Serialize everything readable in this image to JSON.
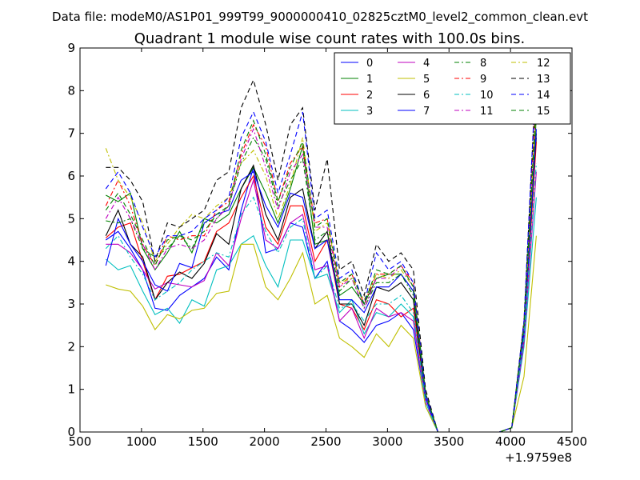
{
  "header": {
    "data_file": "Data file: modeM0/AS1P01_999T99_9000000410_02825cztM0_level2_common_clean.evt"
  },
  "chart_data": {
    "type": "line",
    "title": "Quadrant 1 module wise count rates with 100.0s bins.",
    "xlabel": "",
    "ylabel": "",
    "x_offset_label": "+1.9759e8",
    "xlim": [
      500,
      4500
    ],
    "ylim": [
      0,
      9
    ],
    "xticks": [
      500,
      1000,
      1500,
      2000,
      2500,
      3000,
      3500,
      4000,
      4500
    ],
    "yticks": [
      0,
      1,
      2,
      3,
      4,
      5,
      6,
      7,
      8,
      9
    ],
    "grid": false,
    "legend_position": "top-right",
    "x": [
      710,
      810,
      910,
      1010,
      1110,
      1210,
      1310,
      1410,
      1510,
      1610,
      1710,
      1810,
      1910,
      2010,
      2110,
      2210,
      2310,
      2410,
      2510,
      2610,
      2710,
      2810,
      2910,
      3010,
      3110,
      3210,
      3310,
      3410,
      3510,
      3610,
      3710,
      3810,
      3910,
      4010,
      4110,
      4210
    ],
    "series": [
      {
        "name": "0",
        "color": "#0000ff",
        "dash": "solid",
        "values": [
          4.5,
          4.7,
          4.3,
          3.8,
          2.9,
          2.85,
          3.2,
          3.4,
          3.6,
          4.1,
          3.8,
          5.2,
          6.2,
          4.2,
          4.3,
          4.9,
          4.8,
          3.6,
          4.0,
          2.6,
          2.4,
          2.1,
          2.5,
          2.6,
          2.8,
          2.4,
          0.7,
          0.0,
          0.0,
          0.0,
          0.0,
          0.0,
          0.0,
          0.1,
          2.3,
          6.9
        ]
      },
      {
        "name": "1",
        "color": "#008000",
        "dash": "solid",
        "values": [
          5.55,
          5.4,
          5.6,
          4.3,
          3.8,
          4.2,
          4.7,
          4.2,
          5.0,
          4.9,
          5.1,
          5.7,
          6.2,
          5.6,
          4.9,
          5.7,
          6.7,
          4.4,
          4.5,
          3.2,
          3.4,
          3.0,
          3.6,
          3.7,
          3.7,
          3.3,
          0.9,
          0.0,
          0.0,
          0.0,
          0.0,
          0.0,
          0.0,
          0.1,
          2.4,
          7.4
        ]
      },
      {
        "name": "2",
        "color": "#ff0000",
        "dash": "solid",
        "values": [
          4.55,
          4.8,
          4.9,
          4.0,
          3.1,
          3.65,
          3.7,
          3.85,
          4.0,
          4.7,
          4.9,
          5.5,
          6.0,
          4.8,
          4.4,
          5.3,
          5.3,
          4.0,
          4.5,
          3.0,
          2.9,
          2.4,
          3.1,
          3.0,
          2.7,
          2.9,
          0.8,
          0.0,
          0.0,
          0.0,
          0.0,
          0.0,
          0.0,
          0.1,
          2.2,
          6.8
        ]
      },
      {
        "name": "3",
        "color": "#00bfbf",
        "dash": "solid",
        "values": [
          4.05,
          3.8,
          3.9,
          3.3,
          2.75,
          2.9,
          2.55,
          3.1,
          2.95,
          3.8,
          3.9,
          4.4,
          4.6,
          3.9,
          3.4,
          4.5,
          4.5,
          3.6,
          3.7,
          2.8,
          3.1,
          2.3,
          2.8,
          2.7,
          3.0,
          2.7,
          0.6,
          0.0,
          0.0,
          0.0,
          0.0,
          0.0,
          0.0,
          0.1,
          2.0,
          5.5
        ]
      },
      {
        "name": "4",
        "color": "#bf00bf",
        "dash": "solid",
        "values": [
          4.4,
          4.4,
          4.2,
          3.8,
          3.35,
          3.5,
          3.45,
          3.4,
          3.55,
          4.2,
          3.9,
          5.0,
          5.9,
          4.5,
          4.3,
          4.9,
          5.1,
          3.8,
          3.9,
          2.6,
          2.9,
          2.2,
          2.9,
          2.7,
          2.8,
          2.6,
          0.7,
          0.0,
          0.0,
          0.0,
          0.0,
          0.0,
          0.0,
          0.1,
          2.1,
          6.1
        ]
      },
      {
        "name": "5",
        "color": "#bfbf00",
        "dash": "solid",
        "values": [
          3.45,
          3.35,
          3.3,
          2.95,
          2.4,
          2.75,
          2.65,
          2.85,
          2.9,
          3.25,
          3.3,
          4.4,
          4.4,
          3.4,
          3.1,
          3.6,
          4.2,
          3.0,
          3.2,
          2.2,
          2.0,
          1.75,
          2.3,
          2.0,
          2.5,
          2.2,
          0.6,
          0.0,
          0.0,
          0.0,
          0.0,
          0.0,
          0.0,
          0.1,
          1.3,
          4.6
        ]
      },
      {
        "name": "6",
        "color": "#000000",
        "dash": "solid",
        "values": [
          4.6,
          5.2,
          4.4,
          4.1,
          3.1,
          3.5,
          3.75,
          3.6,
          3.95,
          4.65,
          4.4,
          5.7,
          6.25,
          5.1,
          4.5,
          5.5,
          5.7,
          4.3,
          4.7,
          3.0,
          3.0,
          2.5,
          3.4,
          3.3,
          3.5,
          3.1,
          0.8,
          0.0,
          0.0,
          0.0,
          0.0,
          0.0,
          0.0,
          0.1,
          2.4,
          7.0
        ]
      },
      {
        "name": "7",
        "color": "#0000ff",
        "dash": "solid",
        "values": [
          3.9,
          5.0,
          4.4,
          4.0,
          3.45,
          3.3,
          3.95,
          3.85,
          4.9,
          5.1,
          5.2,
          5.9,
          6.1,
          5.3,
          4.8,
          5.6,
          5.5,
          4.3,
          4.5,
          3.1,
          3.1,
          2.8,
          3.4,
          3.4,
          3.7,
          3.3,
          0.8,
          0.0,
          0.0,
          0.0,
          0.0,
          0.0,
          0.0,
          0.1,
          2.3,
          7.1
        ]
      },
      {
        "name": "8",
        "color": "#008000",
        "dash": "dashdot",
        "values": [
          4.95,
          4.9,
          5.0,
          4.3,
          4.1,
          4.3,
          4.6,
          4.3,
          4.9,
          5.0,
          5.3,
          6.3,
          6.9,
          6.4,
          5.3,
          5.9,
          6.4,
          4.5,
          4.7,
          3.3,
          3.6,
          2.9,
          3.5,
          3.5,
          3.7,
          3.2,
          0.9,
          0.0,
          0.0,
          0.0,
          0.0,
          0.0,
          0.0,
          0.1,
          2.5,
          7.4
        ]
      },
      {
        "name": "9",
        "color": "#ff0000",
        "dash": "dashdot",
        "values": [
          5.3,
          5.9,
          5.3,
          4.4,
          3.9,
          4.6,
          4.5,
          4.6,
          4.6,
          5.2,
          5.4,
          6.5,
          7.2,
          6.7,
          5.4,
          6.3,
          6.7,
          4.9,
          5.0,
          3.4,
          3.7,
          3.0,
          3.7,
          3.7,
          3.9,
          3.5,
          0.9,
          0.0,
          0.0,
          0.0,
          0.0,
          0.0,
          0.0,
          0.1,
          2.6,
          8.0
        ]
      },
      {
        "name": "10",
        "color": "#00bfbf",
        "dash": "dashdot",
        "values": [
          4.3,
          4.6,
          4.1,
          3.7,
          3.1,
          3.3,
          3.5,
          3.8,
          4.0,
          4.2,
          4.1,
          5.1,
          5.5,
          4.7,
          4.2,
          4.8,
          5.0,
          3.6,
          3.9,
          2.9,
          3.0,
          2.6,
          3.0,
          3.0,
          3.2,
          2.8,
          0.7,
          0.0,
          0.0,
          0.0,
          0.0,
          0.0,
          0.0,
          0.1,
          2.2,
          6.3
        ]
      },
      {
        "name": "11",
        "color": "#bf00bf",
        "dash": "dashdot",
        "values": [
          5.0,
          5.5,
          5.0,
          4.4,
          3.8,
          4.3,
          4.4,
          4.3,
          4.5,
          5.0,
          5.3,
          6.4,
          7.1,
          6.2,
          5.2,
          6.1,
          6.5,
          4.8,
          4.8,
          3.4,
          3.6,
          2.9,
          3.6,
          3.6,
          3.9,
          3.4,
          0.9,
          0.0,
          0.0,
          0.0,
          0.0,
          0.0,
          0.0,
          0.1,
          2.5,
          7.7
        ]
      },
      {
        "name": "12",
        "color": "#bfbf00",
        "dash": "dashdot",
        "values": [
          6.65,
          5.9,
          5.5,
          4.9,
          4.0,
          4.4,
          4.8,
          5.1,
          5.0,
          5.3,
          5.5,
          6.3,
          6.6,
          6.0,
          5.0,
          5.8,
          6.9,
          4.7,
          4.9,
          3.5,
          3.6,
          3.1,
          3.7,
          3.6,
          3.8,
          3.4,
          0.9,
          0.0,
          0.0,
          0.0,
          0.0,
          0.0,
          0.0,
          0.1,
          2.5,
          7.6
        ]
      },
      {
        "name": "13",
        "color": "#000000",
        "dash": "dashed",
        "values": [
          6.2,
          6.2,
          5.9,
          5.4,
          4.0,
          4.9,
          4.8,
          5.0,
          5.2,
          5.9,
          6.1,
          7.6,
          8.25,
          7.2,
          5.9,
          7.2,
          7.6,
          5.2,
          6.4,
          3.8,
          4.0,
          3.2,
          4.4,
          4.0,
          4.2,
          3.8,
          1.0,
          0.0,
          0.0,
          0.0,
          0.0,
          0.0,
          0.0,
          0.1,
          2.6,
          8.5
        ]
      },
      {
        "name": "14",
        "color": "#0000ff",
        "dash": "dashed",
        "values": [
          5.7,
          6.1,
          5.6,
          4.8,
          4.1,
          4.6,
          4.6,
          4.7,
          5.0,
          5.2,
          5.5,
          6.9,
          7.5,
          6.8,
          5.6,
          6.5,
          7.5,
          5.0,
          5.2,
          3.6,
          3.8,
          3.0,
          4.2,
          3.8,
          4.0,
          3.5,
          0.9,
          0.0,
          0.0,
          0.0,
          0.0,
          0.0,
          0.0,
          0.1,
          2.6,
          8.6
        ]
      },
      {
        "name": "15",
        "color": "#008000",
        "dash": "dashed",
        "values": [
          5.2,
          5.6,
          5.1,
          4.5,
          3.9,
          4.5,
          4.6,
          4.5,
          4.7,
          5.1,
          5.3,
          6.6,
          7.3,
          6.5,
          5.4,
          6.2,
          6.8,
          4.8,
          5.0,
          3.5,
          3.7,
          3.0,
          3.8,
          3.7,
          3.9,
          3.4,
          0.9,
          0.0,
          0.0,
          0.0,
          0.0,
          0.0,
          0.0,
          0.1,
          2.5,
          7.8
        ]
      }
    ]
  }
}
